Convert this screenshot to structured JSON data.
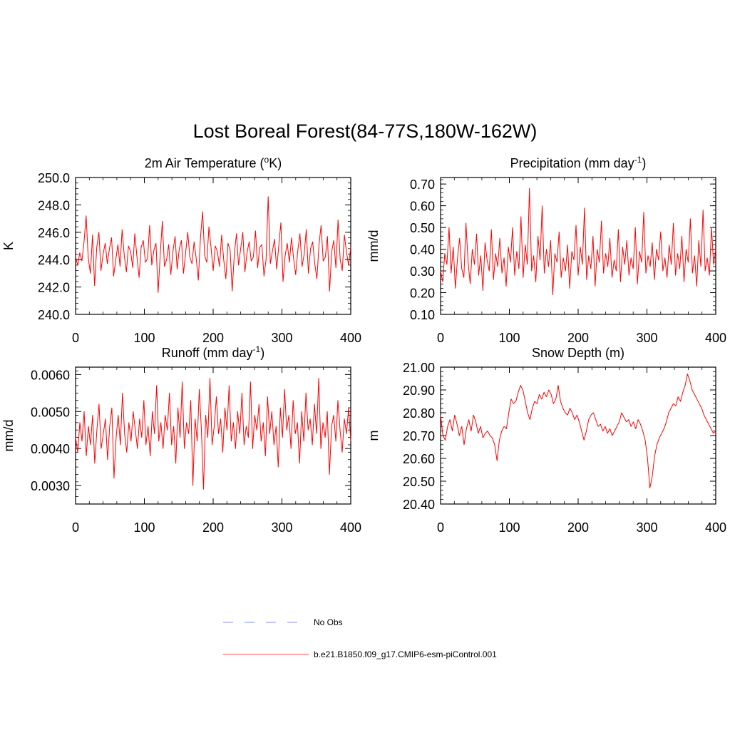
{
  "page": {
    "title": "Lost Boreal Forest(84-77S,180W-162W)"
  },
  "legend": {
    "obs_label": "No Obs",
    "obs_color": "#a0a0ff",
    "model_label": "b.e21.B1850.f09_g17.CMIP6-esm-piControl.001",
    "model_color": "#ff7070"
  },
  "chart_data": [
    {
      "type": "line",
      "title_main": "2m Air Temperature (",
      "title_sup": "o",
      "title_end": "K)",
      "ylabel": "K",
      "xlabel": "",
      "xlim": [
        0,
        400
      ],
      "ylim": [
        240,
        250
      ],
      "xticks": [
        0,
        100,
        200,
        300,
        400
      ],
      "xtick_labels": [
        "0",
        "100",
        "200",
        "300",
        "400"
      ],
      "yticks": [
        240,
        242,
        244,
        246,
        248,
        250
      ],
      "ytick_labels": [
        "240.0",
        "242.0",
        "244.0",
        "246.0",
        "248.0",
        "250.0"
      ],
      "series_color": "#ff0000",
      "series": [
        {
          "name": "b.e21.B1850.f09_g17.CMIP6-esm-piControl.001",
          "values": [
            244.2,
            243.6,
            244.5,
            243.9,
            245.3,
            247.2,
            244.1,
            243.0,
            245.8,
            242.1,
            244.9,
            246.0,
            243.2,
            244.4,
            245.2,
            243.7,
            244.8,
            245.6,
            242.8,
            244.0,
            245.1,
            243.5,
            246.2,
            244.3,
            243.1,
            245.0,
            244.6,
            243.4,
            245.9,
            244.2,
            242.7,
            244.9,
            245.4,
            243.8,
            244.1,
            246.5,
            243.6,
            244.7,
            245.2,
            241.6,
            244.4,
            246.8,
            243.5,
            244.0,
            245.1,
            242.9,
            244.6,
            245.7,
            243.3,
            244.8,
            245.4,
            243.0,
            244.5,
            246.0,
            244.2,
            243.7,
            245.3,
            244.1,
            242.5,
            245.6,
            247.5,
            244.3,
            243.8,
            246.4,
            244.9,
            243.2,
            245.0,
            244.6,
            243.5,
            245.8,
            244.0,
            242.6,
            245.2,
            244.7,
            241.7,
            244.4,
            245.9,
            243.6,
            244.8,
            246.0,
            243.1,
            244.5,
            245.3,
            243.9,
            244.2,
            246.1,
            243.4,
            244.9,
            245.1,
            242.8,
            244.0,
            248.6,
            243.7,
            244.6,
            245.5,
            243.3,
            245.0,
            246.7,
            242.4,
            244.3,
            245.2,
            243.8,
            245.6,
            244.1,
            242.9,
            244.7,
            245.9,
            243.5,
            244.4,
            246.2,
            243.0,
            244.8,
            245.3,
            243.7,
            242.6,
            245.1,
            246.5,
            243.9,
            244.2,
            245.7,
            241.7,
            244.6,
            245.4,
            243.4,
            246.9,
            244.0,
            243.2,
            245.8,
            244.5,
            243.6,
            244.9
          ]
        }
      ]
    },
    {
      "type": "line",
      "title_main": "Precipitation (mm day",
      "title_sup": "-1",
      "title_end": ")",
      "ylabel": "mm/d",
      "xlabel": "",
      "xlim": [
        0,
        400
      ],
      "ylim": [
        0.1,
        0.73
      ],
      "xticks": [
        0,
        100,
        200,
        300,
        400
      ],
      "xtick_labels": [
        "0",
        "100",
        "200",
        "300",
        "400"
      ],
      "yticks": [
        0.1,
        0.2,
        0.3,
        0.4,
        0.5,
        0.6,
        0.7
      ],
      "ytick_labels": [
        "0.10",
        "0.20",
        "0.30",
        "0.40",
        "0.50",
        "0.60",
        "0.70"
      ],
      "series_color": "#ff0000",
      "series": [
        {
          "name": "b.e21.B1850.f09_g17.CMIP6-esm-piControl.001",
          "values": [
            0.3,
            0.25,
            0.38,
            0.33,
            0.5,
            0.29,
            0.41,
            0.22,
            0.36,
            0.45,
            0.31,
            0.27,
            0.52,
            0.34,
            0.24,
            0.4,
            0.33,
            0.47,
            0.28,
            0.37,
            0.21,
            0.43,
            0.35,
            0.3,
            0.49,
            0.26,
            0.38,
            0.32,
            0.45,
            0.29,
            0.36,
            0.23,
            0.41,
            0.34,
            0.5,
            0.28,
            0.39,
            0.31,
            0.55,
            0.27,
            0.42,
            0.33,
            0.68,
            0.3,
            0.37,
            0.25,
            0.46,
            0.35,
            0.6,
            0.29,
            0.4,
            0.32,
            0.44,
            0.19,
            0.38,
            0.34,
            0.48,
            0.27,
            0.36,
            0.3,
            0.42,
            0.22,
            0.39,
            0.35,
            0.51,
            0.28,
            0.41,
            0.33,
            0.59,
            0.26,
            0.37,
            0.31,
            0.46,
            0.23,
            0.4,
            0.34,
            0.53,
            0.29,
            0.38,
            0.32,
            0.45,
            0.27,
            0.35,
            0.3,
            0.49,
            0.25,
            0.41,
            0.33,
            0.44,
            0.28,
            0.36,
            0.31,
            0.5,
            0.24,
            0.39,
            0.34,
            0.57,
            0.29,
            0.37,
            0.32,
            0.43,
            0.26,
            0.4,
            0.35,
            0.48,
            0.3,
            0.36,
            0.27,
            0.42,
            0.33,
            0.52,
            0.28,
            0.38,
            0.31,
            0.46,
            0.25,
            0.4,
            0.34,
            0.54,
            0.29,
            0.37,
            0.23,
            0.44,
            0.32,
            0.58,
            0.3,
            0.36,
            0.28,
            0.5,
            0.33,
            0.4
          ]
        }
      ]
    },
    {
      "type": "line",
      "title_main": "Runoff (mm day",
      "title_sup": "-1",
      "title_end": ")",
      "ylabel": "mm/d",
      "xlabel": "",
      "xlim": [
        0,
        400
      ],
      "ylim": [
        0.0025,
        0.0062
      ],
      "xticks": [
        0,
        100,
        200,
        300,
        400
      ],
      "xtick_labels": [
        "0",
        "100",
        "200",
        "300",
        "400"
      ],
      "yticks": [
        0.003,
        0.004,
        0.005,
        0.006
      ],
      "ytick_labels": [
        "0.0030",
        "0.0040",
        "0.0050",
        "0.0060"
      ],
      "series_color": "#ff0000",
      "series": [
        {
          "name": "b.e21.B1850.f09_g17.CMIP6-esm-piControl.001",
          "values": [
            0.0043,
            0.0039,
            0.0047,
            0.0042,
            0.005,
            0.0038,
            0.0046,
            0.0041,
            0.0049,
            0.0036,
            0.0045,
            0.0052,
            0.004,
            0.0044,
            0.0048,
            0.0037,
            0.0046,
            0.0051,
            0.0032,
            0.0043,
            0.0049,
            0.0041,
            0.0055,
            0.0044,
            0.0039,
            0.0047,
            0.0042,
            0.005,
            0.0045,
            0.004,
            0.0048,
            0.0043,
            0.0053,
            0.0041,
            0.0046,
            0.0038,
            0.005,
            0.0044,
            0.0057,
            0.0042,
            0.0047,
            0.004,
            0.0049,
            0.0045,
            0.0055,
            0.0041,
            0.0046,
            0.0036,
            0.0051,
            0.0043,
            0.0058,
            0.004,
            0.0047,
            0.0044,
            0.0053,
            0.003,
            0.0048,
            0.0042,
            0.0056,
            0.0045,
            0.0029,
            0.0049,
            0.0043,
            0.0059,
            0.0041,
            0.0046,
            0.0054,
            0.0044,
            0.0048,
            0.0039,
            0.0051,
            0.0045,
            0.0057,
            0.0042,
            0.0047,
            0.004,
            0.005,
            0.0044,
            0.0055,
            0.0041,
            0.0046,
            0.0043,
            0.0058,
            0.004,
            0.0049,
            0.0045,
            0.0052,
            0.0042,
            0.0047,
            0.0038,
            0.0054,
            0.0044,
            0.005,
            0.0041,
            0.0046,
            0.0035,
            0.0051,
            0.0043,
            0.0056,
            0.0045,
            0.0049,
            0.004,
            0.0053,
            0.0044,
            0.0047,
            0.0036,
            0.005,
            0.0042,
            0.0055,
            0.0045,
            0.0048,
            0.0041,
            0.0052,
            0.0044,
            0.0059,
            0.004,
            0.0047,
            0.0043,
            0.005,
            0.0033,
            0.0046,
            0.0049,
            0.0042,
            0.0053,
            0.0045,
            0.0039,
            0.0048,
            0.0044,
            0.0051,
            0.0042
          ]
        }
      ]
    },
    {
      "type": "line",
      "title_main": "Snow Depth (m)",
      "title_sup": "",
      "title_end": "",
      "ylabel": "m",
      "xlabel": "",
      "xlim": [
        0,
        400
      ],
      "ylim": [
        20.4,
        21.0
      ],
      "xticks": [
        0,
        100,
        200,
        300,
        400
      ],
      "xtick_labels": [
        "0",
        "100",
        "200",
        "300",
        "400"
      ],
      "yticks": [
        20.4,
        20.5,
        20.6,
        20.7,
        20.8,
        20.9,
        21.0
      ],
      "ytick_labels": [
        "20.40",
        "20.50",
        "20.60",
        "20.70",
        "20.80",
        "20.90",
        "21.00"
      ],
      "series_color": "#ff0000",
      "series": [
        {
          "name": "b.e21.B1850.f09_g17.CMIP6-esm-piControl.001",
          "values": [
            20.79,
            20.7,
            20.68,
            20.74,
            20.77,
            20.72,
            20.79,
            20.75,
            20.7,
            20.74,
            20.66,
            20.73,
            20.77,
            20.72,
            20.79,
            20.76,
            20.71,
            20.74,
            20.69,
            20.71,
            20.72,
            20.7,
            20.69,
            20.66,
            20.59,
            20.68,
            20.72,
            20.74,
            20.73,
            20.8,
            20.86,
            20.84,
            20.85,
            20.89,
            20.92,
            20.9,
            20.85,
            20.8,
            20.77,
            20.82,
            20.85,
            20.84,
            20.88,
            20.86,
            20.89,
            20.87,
            20.9,
            20.88,
            20.84,
            20.86,
            20.92,
            20.85,
            20.82,
            20.8,
            20.79,
            20.82,
            20.8,
            20.77,
            20.79,
            20.76,
            20.72,
            20.68,
            20.72,
            20.77,
            20.79,
            20.8,
            20.77,
            20.74,
            20.75,
            20.72,
            20.74,
            20.71,
            20.73,
            20.7,
            20.72,
            20.74,
            20.76,
            20.8,
            20.78,
            20.76,
            20.77,
            20.74,
            20.76,
            20.73,
            20.77,
            20.75,
            20.72,
            20.68,
            20.6,
            20.47,
            20.52,
            20.61,
            20.66,
            20.69,
            20.71,
            20.73,
            20.76,
            20.8,
            20.82,
            20.84,
            20.83,
            20.87,
            20.85,
            20.89,
            20.92,
            20.97,
            20.94,
            20.9,
            20.88,
            20.86,
            20.84,
            20.82,
            20.79,
            20.77,
            20.75,
            20.73,
            20.71,
            20.72
          ]
        }
      ]
    }
  ]
}
